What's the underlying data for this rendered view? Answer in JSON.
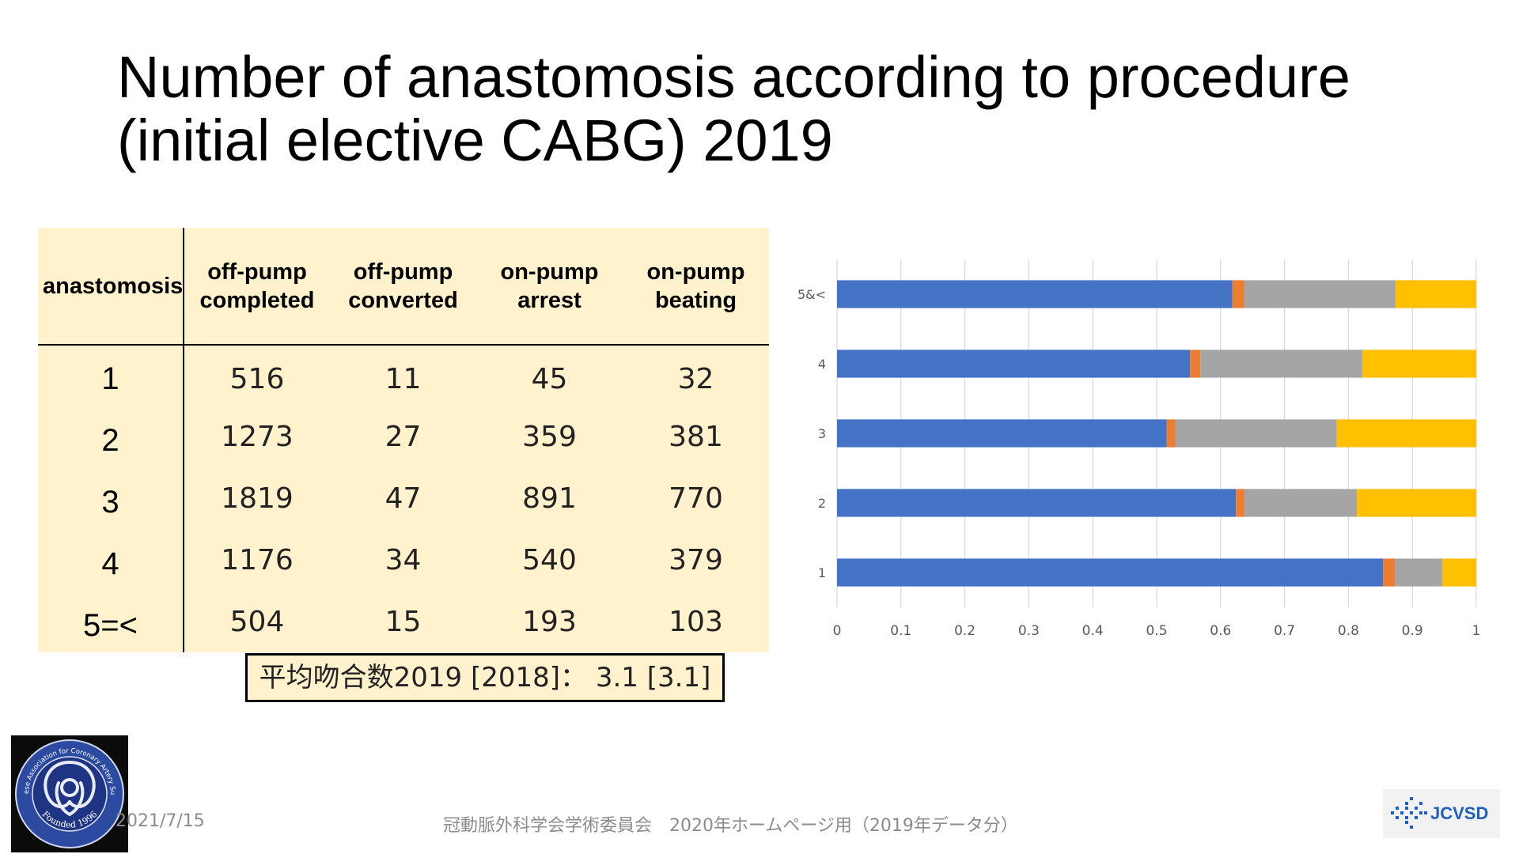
{
  "title": {
    "line1": "Number of anastomosis according to procedure",
    "line2": "(initial elective CABG) 2019"
  },
  "table": {
    "headers": [
      "anastomosis",
      [
        "off-pump",
        "completed"
      ],
      [
        "off-pump",
        "converted"
      ],
      [
        "on-pump",
        "arrest"
      ],
      [
        "on-pump",
        "beating"
      ]
    ],
    "rows": [
      {
        "label": "1",
        "values": [
          "516",
          "11",
          "45",
          "32"
        ]
      },
      {
        "label": "2",
        "values": [
          "1273",
          "27",
          "359",
          "381"
        ]
      },
      {
        "label": "3",
        "values": [
          "1819",
          "47",
          "891",
          "770"
        ]
      },
      {
        "label": "4",
        "values": [
          "1176",
          "34",
          "540",
          "379"
        ]
      },
      {
        "label": "5=<",
        "values": [
          "504",
          "15",
          "193",
          "103"
        ]
      }
    ]
  },
  "average_note": "平均吻合数2019 [2018]： 3.1 [3.1]",
  "chart_data": {
    "type": "bar",
    "orientation": "horizontal",
    "stacked": "percent",
    "categories": [
      "1",
      "2",
      "3",
      "4",
      "5&<"
    ],
    "series": [
      {
        "values": [
          516,
          1273,
          1819,
          1176,
          504
        ],
        "color": "#4472c4"
      },
      {
        "values": [
          11,
          27,
          47,
          34,
          15
        ],
        "color": "#ed7d31"
      },
      {
        "values": [
          45,
          359,
          891,
          540,
          193
        ],
        "color": "#a5a5a5"
      },
      {
        "values": [
          32,
          381,
          770,
          379,
          103
        ],
        "color": "#ffc000"
      }
    ],
    "x_ticks": [
      "0",
      "0.1",
      "0.2",
      "0.3",
      "0.4",
      "0.5",
      "0.6",
      "0.7",
      "0.8",
      "0.9",
      "1"
    ],
    "xlim": [
      0,
      1
    ],
    "grid": "vertical",
    "legend": "none"
  },
  "footer": {
    "date": "2021/7/15",
    "text": "冠動脈外科学会学術委員会　2020年ホームページ用（2019年データ分）"
  },
  "logos": {
    "seal_text_top": "Japanese Association for Coronary Artery Surgery",
    "seal_text_bottom": "Founded 1996",
    "jcvsd": "JCVSD"
  }
}
